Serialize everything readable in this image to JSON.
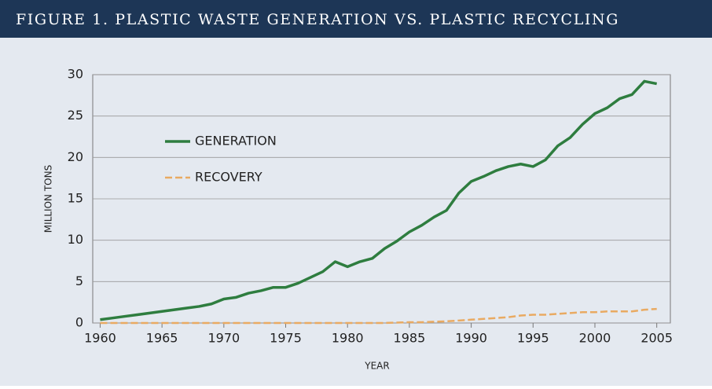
{
  "chart_data": {
    "type": "line",
    "title": "FIGURE 1. PLASTIC WASTE GENERATION VS. PLASTIC RECYCLING",
    "x_label": "YEAR",
    "y_label": "MILLION TONS",
    "x": [
      1960,
      1961,
      1962,
      1963,
      1964,
      1965,
      1966,
      1967,
      1968,
      1969,
      1970,
      1971,
      1972,
      1973,
      1974,
      1975,
      1976,
      1977,
      1978,
      1979,
      1980,
      1981,
      1982,
      1983,
      1984,
      1985,
      1986,
      1987,
      1988,
      1989,
      1990,
      1991,
      1992,
      1993,
      1994,
      1995,
      1996,
      1997,
      1998,
      1999,
      2000,
      2001,
      2002,
      2003,
      2004,
      2005
    ],
    "series": [
      {
        "name": "GENERATION",
        "color": "#2e7d3f",
        "dash": false,
        "values": [
          0.4,
          0.6,
          0.8,
          1.0,
          1.2,
          1.4,
          1.6,
          1.8,
          2.0,
          2.3,
          2.9,
          3.1,
          3.6,
          3.9,
          4.3,
          4.3,
          4.8,
          5.5,
          6.2,
          7.4,
          6.8,
          7.4,
          7.8,
          9.0,
          9.9,
          11.0,
          11.8,
          12.8,
          13.6,
          15.7,
          17.1,
          17.7,
          18.4,
          18.9,
          19.2,
          18.9,
          19.7,
          21.4,
          22.4,
          24.0,
          25.3,
          26.0,
          27.1,
          27.6,
          29.2,
          28.9
        ]
      },
      {
        "name": "RECOVERY",
        "color": "#e9aa62",
        "dash": true,
        "values": [
          0,
          0,
          0,
          0,
          0,
          0,
          0,
          0,
          0,
          0,
          0,
          0,
          0,
          0,
          0,
          0,
          0,
          0,
          0,
          0,
          0,
          0,
          0,
          0,
          0.05,
          0.1,
          0.1,
          0.15,
          0.2,
          0.3,
          0.4,
          0.5,
          0.6,
          0.7,
          0.9,
          1.0,
          1.0,
          1.1,
          1.2,
          1.3,
          1.3,
          1.4,
          1.4,
          1.4,
          1.6,
          1.7
        ]
      }
    ],
    "xlim": [
      1959.4,
      2006.1
    ],
    "xticks": [
      1960,
      1965,
      1970,
      1975,
      1980,
      1985,
      1990,
      1995,
      2000,
      2005
    ],
    "ylim": [
      0,
      30
    ],
    "yticks": [
      0,
      5,
      10,
      15,
      20,
      25,
      30
    ],
    "grid": true,
    "legend": "upper left"
  }
}
